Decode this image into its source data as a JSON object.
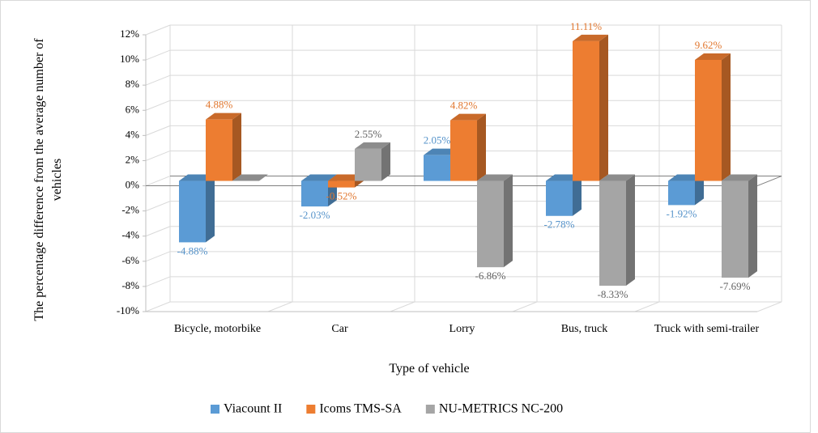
{
  "chart_data": {
    "type": "bar3d",
    "y_axis_label": "The percentage difference from the average number of vehicles",
    "x_axis_label": "Type of vehicle",
    "categories": [
      "Bicycle, motorbike",
      "Car",
      "Lorry",
      "Bus, truck",
      "Truck with semi-trailer"
    ],
    "series": [
      {
        "name": "Viacount II",
        "color": "#5b9bd5",
        "values": [
          -4.88,
          -2.03,
          2.05,
          -2.78,
          -1.92
        ],
        "value_labels": [
          "-4.88%",
          "-2.03%",
          "2.05%",
          "-2.78%",
          "-1.92%"
        ]
      },
      {
        "name": "Icoms TMS-SA",
        "color": "#ed7d31",
        "values": [
          4.88,
          -0.52,
          4.82,
          11.11,
          9.62
        ],
        "value_labels": [
          "4.88%",
          "-0.52%",
          "4.82%",
          "11.11%",
          "9.62%"
        ]
      },
      {
        "name": "NU-METRICS NC-200",
        "color": "#a5a5a5",
        "values": [
          0,
          2.55,
          -6.86,
          -8.33,
          -7.69
        ],
        "value_labels": [
          null,
          "2.55%",
          "-6.86%",
          "-8.33%",
          "-7.69%"
        ]
      }
    ],
    "ylim": [
      -10,
      12
    ],
    "yticks": [
      {
        "value": -10,
        "label": "-10%"
      },
      {
        "value": -8,
        "label": "-8%"
      },
      {
        "value": -6,
        "label": "-6%"
      },
      {
        "value": -4,
        "label": "-4%"
      },
      {
        "value": -2,
        "label": "-2%"
      },
      {
        "value": 0,
        "label": "0%"
      },
      {
        "value": 2,
        "label": "2%"
      },
      {
        "value": 4,
        "label": "4%"
      },
      {
        "value": 6,
        "label": "6%"
      },
      {
        "value": 8,
        "label": "8%"
      },
      {
        "value": 10,
        "label": "10%"
      },
      {
        "value": 12,
        "label": "12%"
      }
    ],
    "grid": true,
    "legend": "bottom"
  }
}
